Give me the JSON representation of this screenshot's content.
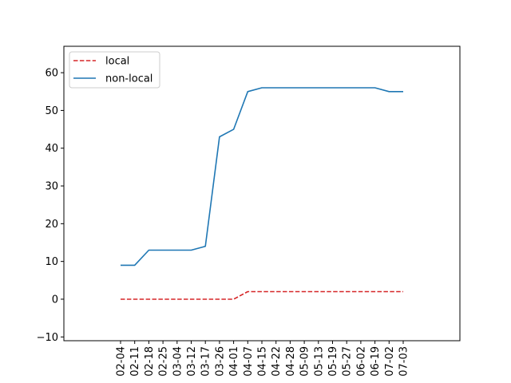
{
  "chart_data": {
    "type": "line",
    "title": "",
    "xlabel": "",
    "ylabel": "",
    "categories": [
      "02-04",
      "02-11",
      "02-18",
      "02-25",
      "03-04",
      "03-12",
      "03-17",
      "03-26",
      "04-01",
      "04-07",
      "04-15",
      "04-22",
      "04-28",
      "05-09",
      "05-13",
      "05-19",
      "05-27",
      "06-02",
      "06-19",
      "07-02",
      "07-03"
    ],
    "ylim": [
      -11,
      67
    ],
    "yticks": [
      -10,
      0,
      10,
      20,
      30,
      40,
      50,
      60
    ],
    "grid": false,
    "legend_position": "top-left",
    "series": [
      {
        "name": "local",
        "style": "dashed",
        "color": "#d62728",
        "values": [
          0,
          0,
          0,
          0,
          0,
          0,
          0,
          0,
          0,
          2,
          2,
          2,
          2,
          2,
          2,
          2,
          2,
          2,
          2,
          2,
          2
        ]
      },
      {
        "name": "non-local",
        "style": "solid",
        "color": "#1f77b4",
        "values": [
          9,
          9,
          13,
          13,
          13,
          13,
          14,
          43,
          45,
          55,
          56,
          56,
          56,
          56,
          56,
          56,
          56,
          56,
          56,
          55,
          55
        ]
      }
    ]
  }
}
